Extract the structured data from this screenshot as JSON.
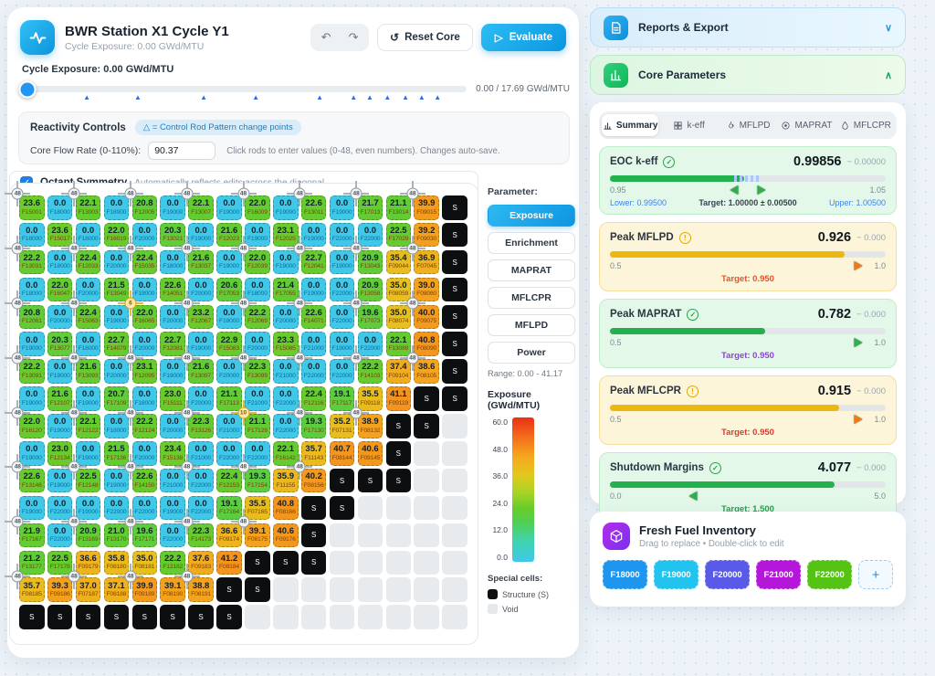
{
  "header": {
    "title": "BWR Station X1 Cycle Y1",
    "subtitle": "Cycle Exposure: 0.00 GWd/MTU",
    "undo_icon": "↶",
    "redo_icon": "↷",
    "reset_icon": "↺",
    "reset_label": "Reset Core",
    "evaluate_icon": "▷",
    "evaluate_label": "Evaluate"
  },
  "exposure_slider": {
    "label": "Cycle Exposure: 0.00 GWd/MTU",
    "progress_label": "0.00 / 17.69 GWd/MTU",
    "markers_pct": [
      14,
      25,
      39.2,
      50.4,
      64.2,
      71.5,
      75,
      78.8,
      82.7,
      86.2,
      89.6
    ]
  },
  "reactivity": {
    "title": "Reactivity Controls",
    "badge": "△ = Control Rod Pattern change points",
    "flow_label": "Core Flow Rate (0-110%):",
    "flow_value": "90.37",
    "hint": "Click rods to enter values (0-48, even numbers). Changes auto-save."
  },
  "octant": {
    "check_icon": "✓",
    "label": "Octant Symmetry",
    "hint": "Automatically reflects edits across the diagonal"
  },
  "core_map": {
    "param_label": "Parameter:",
    "param_buttons": [
      {
        "label": "Exposure",
        "active": true
      },
      {
        "label": "Enrichment",
        "active": false
      },
      {
        "label": "MAPRAT",
        "active": false
      },
      {
        "label": "MFLCPR",
        "active": false
      },
      {
        "label": "MFLPD",
        "active": false
      },
      {
        "label": "Power",
        "active": false
      }
    ],
    "range_label": "Range: 0.00 - 41.17",
    "legend_title": "Exposure (GWd/MTU)",
    "legend_ticks": [
      "60.0",
      "48.0",
      "36.0",
      "24.0",
      "12.0",
      "0.0"
    ],
    "special_title": "Special cells:",
    "structure_label": "Structure (S)",
    "void_label": "Void",
    "rod_default": "48",
    "rod_special": [
      {
        "r": 4,
        "c": 4,
        "v": "6"
      },
      {
        "r": 8,
        "c": 8,
        "v": "10"
      }
    ],
    "rows": [
      [
        "23.6|F15001",
        "0.0|F18000",
        "22.1|F13003",
        "0.0|F18000",
        "20.8|F12005",
        "0.0|F19000",
        "22.1|F13007",
        "0.0|F19000",
        "22.0|F16009",
        "0.0|F19000",
        "22.6|F13011",
        "0.0|F19000",
        "21.7|F17013",
        "21.1|F13014",
        "39.9|F09015",
        "S"
      ],
      [
        "0.0|F18000",
        "23.6|F15017",
        "0.0|F18000",
        "22.0|F16019",
        "0.0|F20000",
        "20.3|F13021",
        "0.0|F19000",
        "21.6|F12023",
        "0.0|F19000",
        "23.1|F12025",
        "0.0|F19000",
        "0.0|F22000",
        "0.0|F22000",
        "22.5|F17029",
        "39.2|F09030",
        "S"
      ],
      [
        "22.2|F13031",
        "0.0|F18000",
        "22.4|F12033",
        "0.0|F20000",
        "22.4|F15035",
        "0.0|F18000",
        "21.6|F13037",
        "0.0|F19000",
        "22.0|F12039",
        "0.0|F19000",
        "22.7|F12041",
        "0.0|F19000",
        "20.9|F13043",
        "35.4|F09044",
        "36.9|F07045",
        "S"
      ],
      [
        "0.0|F18000",
        "22.0|F16047",
        "0.0|F20000",
        "21.5|F13049",
        "0.0|F19000",
        "22.6|F14051",
        "0.0|F20000",
        "20.6|F17053",
        "0.0|F18000",
        "21.4|F17055",
        "0.0|F19000",
        "0.0|F22000",
        "20.9|F13058",
        "35.0|F08059",
        "39.0|F08060",
        "S"
      ],
      [
        "20.8|F12061",
        "0.0|F20000",
        "22.4|F15063",
        "0.0|F19000",
        "22.0|F16065",
        "0.0|F20000",
        "23.2|F12067",
        "0.0|F18000",
        "22.2|F12069",
        "0.0|F20000",
        "22.6|F14071",
        "0.0|F22000",
        "19.6|F17073",
        "35.0|F08074",
        "40.0|F09075",
        "S"
      ],
      [
        "0.0|F19000",
        "20.3|F13077",
        "0.0|F18000",
        "22.7|F14079",
        "0.0|F20000",
        "22.7|F12081",
        "0.0|F19000",
        "22.9|F15083",
        "0.0|F20000",
        "23.3|F15085",
        "0.0|F21000",
        "0.0|F19000",
        "0.0|F22000",
        "22.1|F13089",
        "40.8|F08090",
        "S"
      ],
      [
        "22.2|F13091",
        "0.0|F19000",
        "21.6|F13093",
        "0.0|F20000",
        "23.1|F12095",
        "0.0|F19000",
        "21.6|F13097",
        "0.0|F20000",
        "22.3|F13099",
        "0.0|F21000",
        "0.0|F22000",
        "0.0|F22000",
        "22.2|F14103",
        "37.4|F09104",
        "38.6|F08105",
        "S"
      ],
      [
        "0.0|F19000",
        "21.6|F12107",
        "0.0|F19000",
        "20.7|F17109",
        "0.0|F18000",
        "23.0|F15111",
        "0.0|F20000",
        "21.1|F17113",
        "0.0|F21000",
        "0.0|F22000",
        "22.4|F12116",
        "19.1|F17117",
        "35.5|F09118",
        "41.1|F09119",
        "S",
        "S"
      ],
      [
        "22.0|F16120",
        "0.0|F19000",
        "22.1|F12122",
        "0.0|F18000",
        "22.2|F12124",
        "0.0|F20000",
        "22.3|F13126",
        "0.0|F21000",
        "21.1|F17128",
        "0.0|F22000",
        "19.3|F17130",
        "35.2|F07131",
        "38.9|F08132",
        "S",
        "S",
        ""
      ],
      [
        "0.0|F19000",
        "23.0|F12134",
        "0.0|F19000",
        "21.5|F17136",
        "0.0|F20000",
        "23.4|F15138",
        "0.0|F21000",
        "0.0|F22000",
        "0.0|F22000",
        "22.1|F16142",
        "35.7|F11143",
        "40.7|F08144",
        "40.6|F09145",
        "S",
        "",
        ""
      ],
      [
        "22.6|F13146",
        "0.0|F19000",
        "22.5|F12148",
        "0.0|F19000",
        "22.6|F14150",
        "0.0|F21000",
        "0.0|F22000",
        "22.4|F12153",
        "19.3|F17154",
        "35.9|F11155",
        "40.2|F08156",
        "S",
        "S",
        "S",
        "",
        ""
      ],
      [
        "0.0|F19000",
        "0.0|F22000",
        "0.0|F19000",
        "0.0|F22000",
        "0.0|F22000",
        "0.0|F19000",
        "0.0|F22000",
        "19.1|F17164",
        "35.5|F07165",
        "40.8|F08166",
        "S",
        "S",
        "",
        "",
        "",
        ""
      ],
      [
        "21.9|F17167",
        "0.0|F22000",
        "20.9|F13169",
        "21.0|F13170",
        "19.6|F17171",
        "0.0|F22000",
        "22.3|F14173",
        "36.6|F09174",
        "39.1|F08175",
        "40.6|F09176",
        "S",
        "",
        "",
        "",
        "",
        ""
      ],
      [
        "21.2|F13177",
        "22.5|F17178",
        "36.6|F09179",
        "35.8|F08180",
        "35.0|F08181",
        "22.2|F13182",
        "37.6|F09183",
        "41.2|F09184",
        "S",
        "S",
        "S",
        "",
        "",
        "",
        "",
        ""
      ],
      [
        "35.7|F08185",
        "39.3|F09186",
        "37.0|F07187",
        "37.1|F08188",
        "39.9|F09189",
        "39.1|F08190",
        "38.8|F08191",
        "S",
        "S",
        "",
        "",
        "",
        "",
        "",
        "",
        ""
      ],
      [
        "S",
        "S",
        "S",
        "S",
        "S",
        "S",
        "S",
        "S",
        "",
        "",
        "",
        "",
        "",
        "",
        "",
        ""
      ]
    ]
  },
  "right_panel": {
    "reports_title": "Reports & Export",
    "reports_chevron": "∨",
    "core_params_title": "Core Parameters",
    "core_params_chevron": "∧",
    "tabs": [
      {
        "label": "Summary",
        "icon": "chart-bars-icon",
        "active": true
      },
      {
        "label": "k-eff",
        "icon": "grid-icon",
        "active": false
      },
      {
        "label": "MFLPD",
        "icon": "flame-icon",
        "active": false
      },
      {
        "label": "MAPRAT",
        "icon": "target-icon",
        "active": false
      },
      {
        "label": "MFLCPR",
        "icon": "droplet-icon",
        "active": false
      }
    ],
    "metrics": [
      {
        "name": "EOC k-eff",
        "status": "ok",
        "theme": "green",
        "value": "0.99856",
        "delta": "− 0.00000",
        "min": "0.95",
        "max": "1.05",
        "fill_pct": 48.6,
        "band_pct": [
          45,
          55
        ],
        "markers": [
          {
            "pct": 45,
            "dir": "left",
            "color": "#2fae4e"
          },
          {
            "pct": 55,
            "dir": "right",
            "color": "#2fae4e"
          }
        ],
        "lower": "Lower: 0.99500",
        "target": "Target: 1.00000 ± 0.00500",
        "upper": "Upper: 1.00500"
      },
      {
        "name": "Peak MFLPD",
        "status": "warn",
        "theme": "amber",
        "value": "0.926",
        "delta": "− 0.000",
        "min": "0.5",
        "max": "1.0",
        "fill_pct": 85.2,
        "markers": [
          {
            "pct": 90,
            "dir": "right",
            "color": "#f07818"
          }
        ],
        "target": "Target: 0.950",
        "target_color": "#e2542c"
      },
      {
        "name": "Peak MAPRAT",
        "status": "ok",
        "theme": "green",
        "value": "0.782",
        "delta": "− 0.000",
        "min": "0.5",
        "max": "1.0",
        "fill_pct": 56.4,
        "markers": [
          {
            "pct": 90,
            "dir": "right",
            "color": "#2fae4e"
          }
        ],
        "target": "Target: 0.950",
        "target_color": "#8b45d6"
      },
      {
        "name": "Peak MFLCPR",
        "status": "warn",
        "theme": "amber",
        "value": "0.915",
        "delta": "− 0.000",
        "min": "0.5",
        "max": "1.0",
        "fill_pct": 83,
        "markers": [
          {
            "pct": 90,
            "dir": "right",
            "color": "#f07818"
          }
        ],
        "target": "Target: 0.950",
        "target_color": "#da3b30"
      },
      {
        "name": "Shutdown Margins",
        "status": "ok",
        "theme": "green",
        "value": "4.077",
        "delta": "− 0.000",
        "min": "0.0",
        "max": "5.0",
        "fill_pct": 81.5,
        "markers": [
          {
            "pct": 30,
            "dir": "left",
            "color": "#2fae4e"
          }
        ],
        "target": "Target: 1.500",
        "target_color": "#28a04c"
      }
    ],
    "fresh_fuel": {
      "title": "Fresh Fuel Inventory",
      "subtitle": "Drag to replace • Double-click to edit",
      "chips": [
        {
          "label": "F18000",
          "color": "#1e96f0"
        },
        {
          "label": "F19000",
          "color": "#23c3ef"
        },
        {
          "label": "F20000",
          "color": "#5a5ae8"
        },
        {
          "label": "F21000",
          "color": "#b517da"
        },
        {
          "label": "F22000",
          "color": "#55c313"
        }
      ],
      "add_label": "+"
    }
  }
}
